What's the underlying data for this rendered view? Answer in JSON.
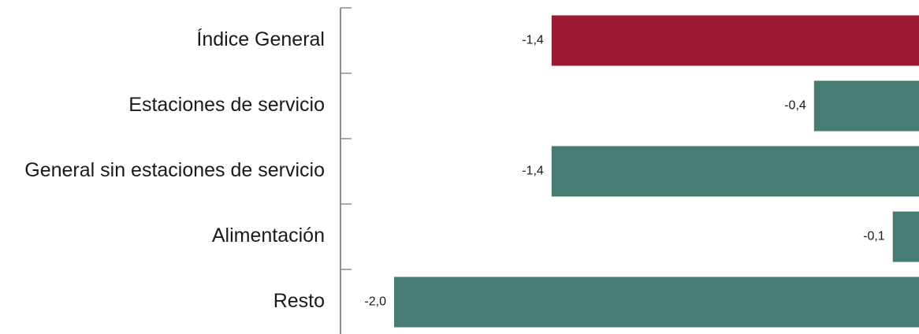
{
  "chart_data": {
    "type": "bar",
    "orientation": "horizontal",
    "categories": [
      "Índice General",
      "Estaciones de servicio",
      "General sin estaciones de servicio",
      "Alimentación",
      "Resto"
    ],
    "values": [
      -1.4,
      -0.4,
      -1.4,
      -0.1,
      -2.0
    ],
    "value_labels": [
      "-1,4",
      "-0,4",
      "-1,4",
      "-0,1",
      "-2,0"
    ],
    "xlim": [
      -2.0,
      0
    ],
    "title": "",
    "xlabel": "",
    "ylabel": "",
    "grid": false,
    "legend": "none",
    "colors": {
      "highlight": "#9e1a34",
      "default": "#477c74",
      "axis": "#8c8c8c",
      "text": "#1a1a1a"
    },
    "highlight_categories": [
      "Índice General"
    ]
  }
}
